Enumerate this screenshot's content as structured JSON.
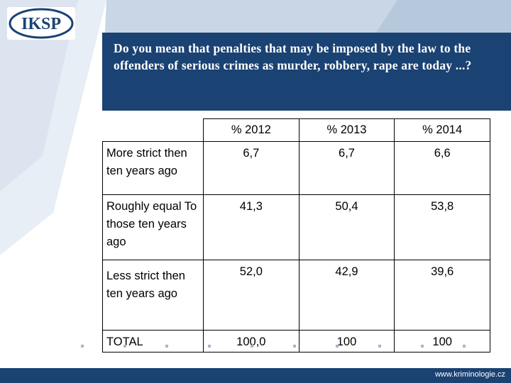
{
  "logo": {
    "text": "IKSP"
  },
  "question": "Do you mean that penalties that  may be imposed by the law to the offenders of serious crimes as murder, robbery, rape are today  ...?",
  "table": {
    "headers": [
      "% 2012",
      "% 2013",
      "% 2014"
    ],
    "rows": [
      {
        "label": "More strict then ten years ago",
        "values": [
          "6,7",
          "6,7",
          "6,6"
        ]
      },
      {
        "label": "Roughly equal To those ten years ago",
        "values": [
          "41,3",
          "50,4",
          "53,8"
        ]
      },
      {
        "label": "Less strict then ten years ago",
        "values": [
          "52,0",
          "42,9",
          "39,6"
        ]
      },
      {
        "label": "TOTAL",
        "values": [
          "100,0",
          "100",
          "100"
        ]
      }
    ]
  },
  "footer": {
    "url": "www.kriminologie.cz"
  },
  "colors": {
    "navy": "#1a4273",
    "light_blue": "#c8d6e6"
  }
}
